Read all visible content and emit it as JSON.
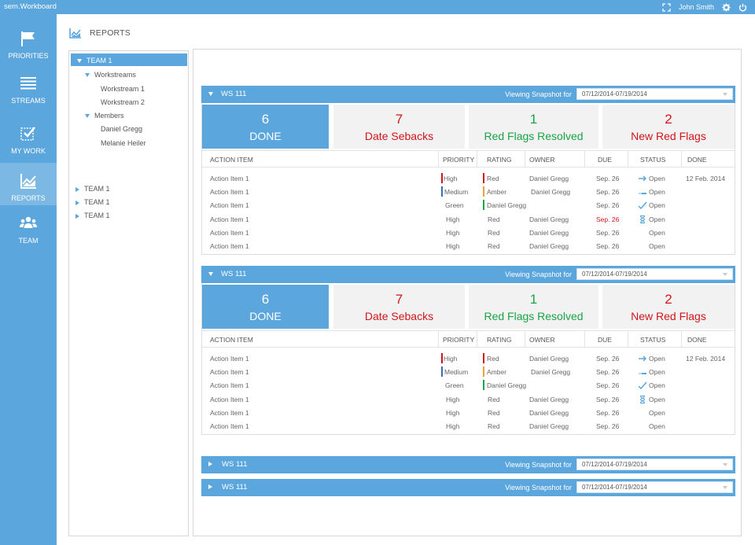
{
  "app": {
    "title": "sem.Workboard",
    "user": "John Smith"
  },
  "nav": [
    {
      "key": "priorities",
      "label": "PRIORITIES",
      "icon": "flag-icon"
    },
    {
      "key": "streams",
      "label": "STREAMS",
      "icon": "list-icon"
    },
    {
      "key": "mywork",
      "label": "MY WORK",
      "icon": "checkbox-icon"
    },
    {
      "key": "reports",
      "label": "REPORTS",
      "icon": "chart-icon",
      "active": true
    },
    {
      "key": "team",
      "label": "TEAM",
      "icon": "people-icon"
    }
  ],
  "page": {
    "title": "REPORTS"
  },
  "tree": {
    "selected": "TEAM 1",
    "workstreams_label": "Workstreams",
    "workstreams": [
      "Workstream 1",
      "Workstream 2"
    ],
    "members_label": "Members",
    "members": [
      "Daniel Gregg",
      "Melanie Heiler"
    ],
    "collapsed": [
      "TEAM 1",
      "TEAM 1",
      "TEAM 1"
    ]
  },
  "columns": [
    "ACTION ITEM",
    "PRIORITY",
    "RATING",
    "OWNER",
    "DUE",
    "STATUS",
    "DONE"
  ],
  "workstreams": [
    {
      "title": "WS 111",
      "expanded": true,
      "snapshot_label": "Viewing Snapshot for",
      "snapshot": "07/12/2014-07/19/2014",
      "stats": [
        {
          "num": "6",
          "label": "DONE"
        },
        {
          "num": "7",
          "label": "Date Sebacks"
        },
        {
          "num": "1",
          "label": "Red Flags Resolved"
        },
        {
          "num": "2",
          "label": "New Red Flags"
        }
      ],
      "rows": [
        {
          "item": "Action Item 1",
          "priority": "High",
          "rating": "Red",
          "owner": "Daniel Gregg",
          "due": "Sep. 26",
          "status": "Open",
          "done": "12 Feb. 2014"
        },
        {
          "item": "Action Item 1",
          "priority": "Medium",
          "rating": "Amber",
          "owner": "Daniel Gregg",
          "due": "Sep. 26",
          "status": "Open",
          "done": ""
        },
        {
          "item": "Action Item 1",
          "priority": "Green",
          "rating": "Daniel Gregg",
          "owner": "",
          "due": "Sep. 26",
          "status": "Open",
          "done": ""
        },
        {
          "item": "Action Item 1",
          "priority": "High",
          "rating": "Red",
          "owner": "Daniel Gregg",
          "due": "Sep. 26",
          "status": "Open",
          "done": ""
        },
        {
          "item": "Action Item 1",
          "priority": "High",
          "rating": "Red",
          "owner": "Daniel Gregg",
          "due": "Sep. 26",
          "status": "Open",
          "done": ""
        },
        {
          "item": "Action Item 1",
          "priority": "High",
          "rating": "Red",
          "owner": "Daniel Gregg",
          "due": "Sep. 26",
          "status": "Open",
          "done": ""
        }
      ]
    },
    {
      "title": "WS 111",
      "expanded": true,
      "snapshot_label": "Viewing Snapshot for",
      "snapshot": "07/12/2014-07/19/2014",
      "stats": [
        {
          "num": "6",
          "label": "DONE"
        },
        {
          "num": "7",
          "label": "Date Sebacks"
        },
        {
          "num": "1",
          "label": "Red Flags Resolved"
        },
        {
          "num": "2",
          "label": "New Red Flags"
        }
      ],
      "rows": [
        {
          "item": "Action Item 1",
          "priority": "High",
          "rating": "Red",
          "owner": "Daniel Gregg",
          "due": "Sep. 26",
          "status": "Open",
          "done": "12 Feb. 2014"
        },
        {
          "item": "Action Item 1",
          "priority": "Medium",
          "rating": "Amber",
          "owner": "Daniel Gregg",
          "due": "Sep. 26",
          "status": "Open",
          "done": ""
        },
        {
          "item": "Action Item 1",
          "priority": "Green",
          "rating": "Daniel Gregg",
          "owner": "",
          "due": "Sep. 26",
          "status": "Open",
          "done": ""
        },
        {
          "item": "Action Item 1",
          "priority": "High",
          "rating": "Red",
          "owner": "Daniel Gregg",
          "due": "Sep. 26",
          "status": "Open",
          "done": ""
        },
        {
          "item": "Action Item 1",
          "priority": "High",
          "rating": "Red",
          "owner": "Daniel Gregg",
          "due": "Sep. 26",
          "status": "Open",
          "done": ""
        },
        {
          "item": "Action Item 1",
          "priority": "High",
          "rating": "Red",
          "owner": "Daniel Gregg",
          "due": "Sep. 26",
          "status": "Open",
          "done": ""
        }
      ]
    },
    {
      "title": "WS 111",
      "expanded": false,
      "snapshot_label": "Viewing Snapshot for",
      "snapshot": "07/12/2014-07/19/2014"
    },
    {
      "title": "WS 111",
      "expanded": false,
      "snapshot_label": "Viewing Snapshot for",
      "snapshot": "07/12/2014-07/19/2014"
    }
  ],
  "colors": {
    "accent": "#5ba6dc",
    "red": "#d0161b",
    "green": "#19a447",
    "amber": "#f0a030",
    "priority_blue": "#3a6fb0"
  }
}
